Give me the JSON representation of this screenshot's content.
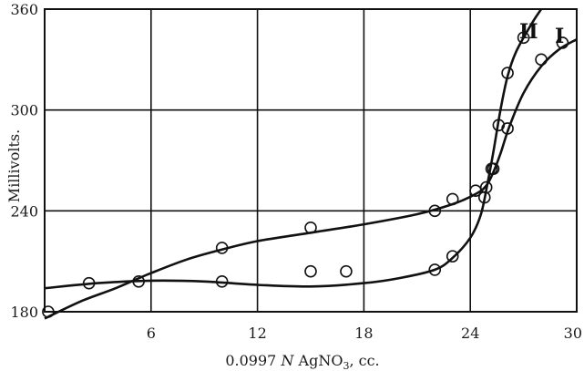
{
  "chart_data": {
    "type": "line",
    "xlabel": "0.0997 N AgNO3, cc.",
    "xlabel_parts": {
      "pre": "0.0997 ",
      "italic": "N",
      "mid": " AgNO",
      "sub": "3",
      "post": ", cc."
    },
    "ylabel": "Millivolts.",
    "xlim": [
      0,
      30
    ],
    "ylim": [
      180,
      360
    ],
    "x_ticks": [
      6,
      12,
      18,
      24,
      30
    ],
    "y_ticks": [
      180,
      240,
      300,
      360
    ],
    "grid": true,
    "series": [
      {
        "name": "I",
        "points": [
          [
            0.2,
            180
          ],
          [
            5.3,
            198
          ],
          [
            10,
            218
          ],
          [
            15,
            230
          ],
          [
            22,
            240
          ],
          [
            23,
            247
          ],
          [
            24.3,
            252
          ],
          [
            24.9,
            254
          ],
          [
            25.3,
            265
          ],
          [
            26.1,
            289
          ],
          [
            28,
            330
          ],
          [
            29.2,
            340
          ]
        ],
        "curve": [
          [
            0,
            176
          ],
          [
            2,
            186
          ],
          [
            4,
            194
          ],
          [
            6,
            203
          ],
          [
            8,
            211
          ],
          [
            10,
            217
          ],
          [
            12,
            222
          ],
          [
            15,
            227
          ],
          [
            18,
            232
          ],
          [
            21,
            238
          ],
          [
            23,
            244
          ],
          [
            24.3,
            250
          ],
          [
            24.9,
            255
          ],
          [
            25.3,
            263
          ],
          [
            25.7,
            274
          ],
          [
            26.2,
            290
          ],
          [
            27,
            310
          ],
          [
            28,
            326
          ],
          [
            29,
            336
          ],
          [
            30,
            342
          ]
        ]
      },
      {
        "name": "II",
        "points": [
          [
            2.5,
            197
          ],
          [
            10,
            198
          ],
          [
            15,
            204
          ],
          [
            17,
            204
          ],
          [
            22,
            205
          ],
          [
            23,
            213
          ],
          [
            24.8,
            248
          ],
          [
            25.2,
            265
          ],
          [
            25.6,
            291
          ],
          [
            26.1,
            322
          ],
          [
            27,
            343
          ]
        ],
        "curve": [
          [
            0,
            194
          ],
          [
            3,
            197
          ],
          [
            6,
            198.5
          ],
          [
            9,
            198
          ],
          [
            12,
            196
          ],
          [
            15,
            195
          ],
          [
            18,
            197
          ],
          [
            20,
            200
          ],
          [
            22,
            205
          ],
          [
            23,
            212
          ],
          [
            24,
            224
          ],
          [
            24.6,
            238
          ],
          [
            25,
            258
          ],
          [
            25.3,
            275
          ],
          [
            25.7,
            300
          ],
          [
            26.1,
            320
          ],
          [
            26.6,
            335
          ],
          [
            27.5,
            352
          ],
          [
            28,
            360
          ]
        ]
      }
    ]
  }
}
